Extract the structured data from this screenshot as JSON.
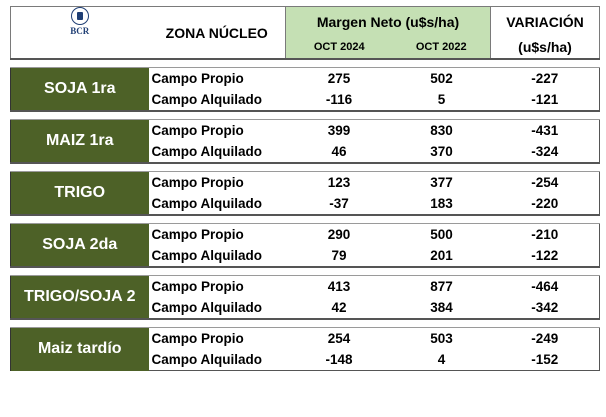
{
  "header": {
    "logo_text": "BCR",
    "zona": "ZONA NÚCLEO",
    "margen": "Margen Neto (u$s/ha)",
    "col1": "OCT 2024",
    "col2": "OCT 2022",
    "variacion": "VARIACIÓN",
    "variacion_unit": "(u$s/ha)"
  },
  "crops": [
    {
      "name": "SOJA 1ra",
      "rows": [
        {
          "label": "Campo Propio",
          "v2024": "275",
          "v2022": "502",
          "var": "-227"
        },
        {
          "label": "Campo Alquilado",
          "v2024": "-116",
          "v2022": "5",
          "var": "-121"
        }
      ]
    },
    {
      "name": "MAIZ 1ra",
      "rows": [
        {
          "label": "Campo Propio",
          "v2024": "399",
          "v2022": "830",
          "var": "-431"
        },
        {
          "label": "Campo Alquilado",
          "v2024": "46",
          "v2022": "370",
          "var": "-324"
        }
      ]
    },
    {
      "name": "TRIGO",
      "rows": [
        {
          "label": "Campo Propio",
          "v2024": "123",
          "v2022": "377",
          "var": "-254"
        },
        {
          "label": "Campo Alquilado",
          "v2024": "-37",
          "v2022": "183",
          "var": "-220"
        }
      ]
    },
    {
      "name": "SOJA 2da",
      "rows": [
        {
          "label": "Campo Propio",
          "v2024": "290",
          "v2022": "500",
          "var": "-210"
        },
        {
          "label": "Campo Alquilado",
          "v2024": "79",
          "v2022": "201",
          "var": "-122"
        }
      ]
    },
    {
      "name": "TRIGO/SOJA 2",
      "rows": [
        {
          "label": "Campo Propio",
          "v2024": "413",
          "v2022": "877",
          "var": "-464"
        },
        {
          "label": "Campo Alquilado",
          "v2024": "42",
          "v2022": "384",
          "var": "-342"
        }
      ]
    },
    {
      "name": "Maiz tardío",
      "rows": [
        {
          "label": "Campo Propio",
          "v2024": "254",
          "v2022": "503",
          "var": "-249"
        },
        {
          "label": "Campo Alquilado",
          "v2024": "-148",
          "v2022": "4",
          "var": "-152"
        }
      ]
    }
  ],
  "colors": {
    "crop_bg": "#4d6127",
    "header_green": "#c5e0b4",
    "logo_blue": "#1f3e74"
  }
}
